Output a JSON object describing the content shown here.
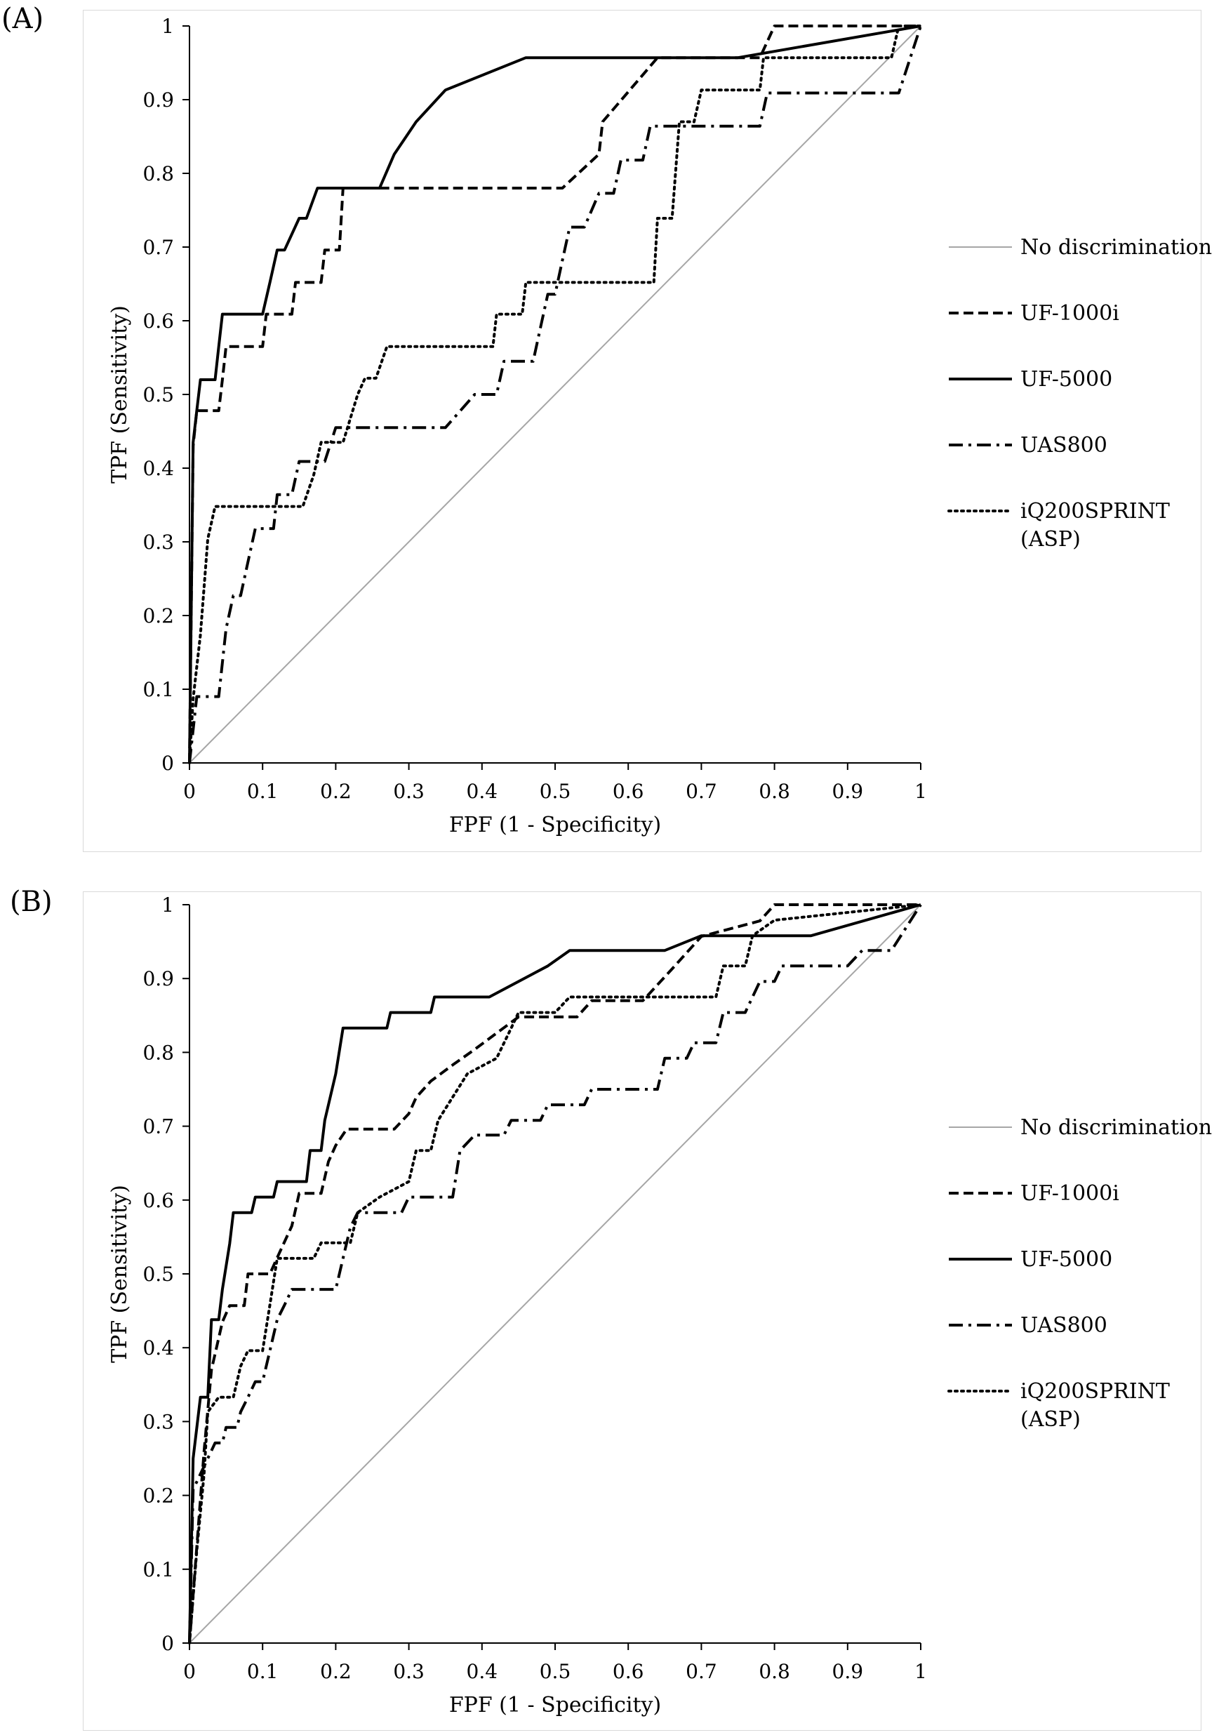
{
  "chart_data": [
    {
      "panel_label": "(A)",
      "type": "line",
      "xlabel": "FPF (1 - Specificity)",
      "ylabel": "TPF (Sensitivity)",
      "xlim": [
        0,
        1
      ],
      "ylim": [
        0,
        1
      ],
      "x_ticks": [
        "0",
        "0.1",
        "0.2",
        "0.3",
        "0.4",
        "0.5",
        "0.6",
        "0.7",
        "0.8",
        "0.9",
        "1"
      ],
      "y_ticks": [
        "0",
        "0.1",
        "0.2",
        "0.3",
        "0.4",
        "0.5",
        "0.6",
        "0.7",
        "0.8",
        "0.9",
        "1"
      ],
      "grid": false,
      "legend_position": "right",
      "series": [
        {
          "name": "No discrimination",
          "style": "solid-gray",
          "points": [
            [
              0,
              0
            ],
            [
              1,
              1
            ]
          ]
        },
        {
          "name": "UF-1000i",
          "style": "dashed",
          "points": [
            [
              0,
              0
            ],
            [
              0.005,
              0.43
            ],
            [
              0.01,
              0.478
            ],
            [
              0.04,
              0.478
            ],
            [
              0.045,
              0.52
            ],
            [
              0.05,
              0.565
            ],
            [
              0.1,
              0.565
            ],
            [
              0.105,
              0.609
            ],
            [
              0.14,
              0.609
            ],
            [
              0.145,
              0.652
            ],
            [
              0.18,
              0.652
            ],
            [
              0.185,
              0.696
            ],
            [
              0.205,
              0.696
            ],
            [
              0.21,
              0.78
            ],
            [
              0.51,
              0.78
            ],
            [
              0.56,
              0.826
            ],
            [
              0.565,
              0.87
            ],
            [
              0.64,
              0.957
            ],
            [
              0.78,
              0.957
            ],
            [
              0.8,
              1
            ],
            [
              1,
              1
            ]
          ]
        },
        {
          "name": "UF-5000",
          "style": "solid",
          "points": [
            [
              0,
              0
            ],
            [
              0.005,
              0.435
            ],
            [
              0.01,
              0.478
            ],
            [
              0.015,
              0.52
            ],
            [
              0.035,
              0.52
            ],
            [
              0.04,
              0.565
            ],
            [
              0.045,
              0.609
            ],
            [
              0.1,
              0.609
            ],
            [
              0.11,
              0.652
            ],
            [
              0.12,
              0.696
            ],
            [
              0.13,
              0.696
            ],
            [
              0.15,
              0.739
            ],
            [
              0.16,
              0.739
            ],
            [
              0.175,
              0.78
            ],
            [
              0.26,
              0.78
            ],
            [
              0.28,
              0.826
            ],
            [
              0.31,
              0.87
            ],
            [
              0.35,
              0.913
            ],
            [
              0.46,
              0.957
            ],
            [
              0.75,
              0.957
            ],
            [
              1,
              1
            ]
          ]
        },
        {
          "name": "UAS800",
          "style": "dashdot",
          "points": [
            [
              0,
              0
            ],
            [
              0.005,
              0.045
            ],
            [
              0.01,
              0.09
            ],
            [
              0.04,
              0.09
            ],
            [
              0.045,
              0.136
            ],
            [
              0.05,
              0.182
            ],
            [
              0.06,
              0.227
            ],
            [
              0.07,
              0.227
            ],
            [
              0.08,
              0.273
            ],
            [
              0.09,
              0.318
            ],
            [
              0.115,
              0.318
            ],
            [
              0.12,
              0.364
            ],
            [
              0.14,
              0.364
            ],
            [
              0.15,
              0.409
            ],
            [
              0.185,
              0.409
            ],
            [
              0.2,
              0.455
            ],
            [
              0.35,
              0.455
            ],
            [
              0.39,
              0.5
            ],
            [
              0.39,
              0.5
            ],
            [
              0.42,
              0.5
            ],
            [
              0.43,
              0.545
            ],
            [
              0.47,
              0.545
            ],
            [
              0.48,
              0.591
            ],
            [
              0.49,
              0.636
            ],
            [
              0.5,
              0.636
            ],
            [
              0.51,
              0.682
            ],
            [
              0.52,
              0.727
            ],
            [
              0.54,
              0.727
            ],
            [
              0.56,
              0.773
            ],
            [
              0.58,
              0.773
            ],
            [
              0.59,
              0.818
            ],
            [
              0.62,
              0.818
            ],
            [
              0.63,
              0.864
            ],
            [
              0.78,
              0.864
            ],
            [
              0.79,
              0.909
            ],
            [
              0.97,
              0.909
            ],
            [
              1,
              1
            ]
          ]
        },
        {
          "name": "iQ200SPRINT (ASP)",
          "style": "dotted",
          "points": [
            [
              0,
              0
            ],
            [
              0.005,
              0.087
            ],
            [
              0.015,
              0.174
            ],
            [
              0.025,
              0.304
            ],
            [
              0.035,
              0.348
            ],
            [
              0.155,
              0.348
            ],
            [
              0.17,
              0.391
            ],
            [
              0.18,
              0.435
            ],
            [
              0.21,
              0.435
            ],
            [
              0.23,
              0.5
            ],
            [
              0.24,
              0.522
            ],
            [
              0.255,
              0.522
            ],
            [
              0.27,
              0.565
            ],
            [
              0.415,
              0.565
            ],
            [
              0.42,
              0.609
            ],
            [
              0.455,
              0.609
            ],
            [
              0.46,
              0.652
            ],
            [
              0.635,
              0.652
            ],
            [
              0.64,
              0.739
            ],
            [
              0.66,
              0.739
            ],
            [
              0.67,
              0.87
            ],
            [
              0.69,
              0.87
            ],
            [
              0.7,
              0.913
            ],
            [
              0.78,
              0.913
            ],
            [
              0.785,
              0.957
            ],
            [
              0.96,
              0.957
            ],
            [
              0.97,
              1
            ],
            [
              1,
              1
            ]
          ]
        }
      ]
    },
    {
      "panel_label": "(B)",
      "type": "line",
      "xlabel": "FPF (1 - Specificity)",
      "ylabel": "TPF (Sensitivity)",
      "xlim": [
        0,
        1
      ],
      "ylim": [
        0,
        1
      ],
      "x_ticks": [
        "0",
        "0.1",
        "0.2",
        "0.3",
        "0.4",
        "0.5",
        "0.6",
        "0.7",
        "0.8",
        "0.9",
        "1"
      ],
      "y_ticks": [
        "0",
        "0.1",
        "0.2",
        "0.3",
        "0.4",
        "0.5",
        "0.6",
        "0.7",
        "0.8",
        "0.9",
        "1"
      ],
      "grid": false,
      "legend_position": "right",
      "series": [
        {
          "name": "No discrimination",
          "style": "solid-gray",
          "points": [
            [
              0,
              0
            ],
            [
              1,
              1
            ]
          ]
        },
        {
          "name": "UF-1000i",
          "style": "dashed",
          "points": [
            [
              0,
              0
            ],
            [
              0.01,
              0.13
            ],
            [
              0.02,
              0.26
            ],
            [
              0.03,
              0.37
            ],
            [
              0.045,
              0.435
            ],
            [
              0.055,
              0.457
            ],
            [
              0.075,
              0.457
            ],
            [
              0.08,
              0.5
            ],
            [
              0.11,
              0.5
            ],
            [
              0.12,
              0.522
            ],
            [
              0.14,
              0.565
            ],
            [
              0.15,
              0.609
            ],
            [
              0.18,
              0.609
            ],
            [
              0.19,
              0.652
            ],
            [
              0.2,
              0.674
            ],
            [
              0.215,
              0.696
            ],
            [
              0.28,
              0.696
            ],
            [
              0.3,
              0.717
            ],
            [
              0.31,
              0.739
            ],
            [
              0.33,
              0.761
            ],
            [
              0.36,
              0.783
            ],
            [
              0.39,
              0.804
            ],
            [
              0.42,
              0.826
            ],
            [
              0.45,
              0.848
            ],
            [
              0.53,
              0.848
            ],
            [
              0.55,
              0.87
            ],
            [
              0.62,
              0.87
            ],
            [
              0.66,
              0.913
            ],
            [
              0.7,
              0.957
            ],
            [
              0.78,
              0.978
            ],
            [
              0.8,
              1
            ],
            [
              1,
              1
            ]
          ]
        },
        {
          "name": "UF-5000",
          "style": "solid",
          "points": [
            [
              0,
              0
            ],
            [
              0.005,
              0.25
            ],
            [
              0.015,
              0.333
            ],
            [
              0.025,
              0.333
            ],
            [
              0.03,
              0.438
            ],
            [
              0.04,
              0.438
            ],
            [
              0.045,
              0.479
            ],
            [
              0.055,
              0.541
            ],
            [
              0.06,
              0.583
            ],
            [
              0.085,
              0.583
            ],
            [
              0.09,
              0.604
            ],
            [
              0.115,
              0.604
            ],
            [
              0.12,
              0.625
            ],
            [
              0.16,
              0.625
            ],
            [
              0.165,
              0.667
            ],
            [
              0.18,
              0.667
            ],
            [
              0.185,
              0.708
            ],
            [
              0.2,
              0.771
            ],
            [
              0.21,
              0.833
            ],
            [
              0.27,
              0.833
            ],
            [
              0.275,
              0.854
            ],
            [
              0.33,
              0.854
            ],
            [
              0.335,
              0.875
            ],
            [
              0.41,
              0.875
            ],
            [
              0.49,
              0.917
            ],
            [
              0.52,
              0.938
            ],
            [
              0.65,
              0.938
            ],
            [
              0.7,
              0.958
            ],
            [
              0.85,
              0.958
            ],
            [
              1,
              1
            ]
          ]
        },
        {
          "name": "UAS800",
          "style": "dashdot",
          "points": [
            [
              0,
              0
            ],
            [
              0.005,
              0.208
            ],
            [
              0.015,
              0.229
            ],
            [
              0.025,
              0.25
            ],
            [
              0.035,
              0.271
            ],
            [
              0.045,
              0.271
            ],
            [
              0.05,
              0.292
            ],
            [
              0.065,
              0.292
            ],
            [
              0.07,
              0.313
            ],
            [
              0.08,
              0.333
            ],
            [
              0.09,
              0.354
            ],
            [
              0.1,
              0.354
            ],
            [
              0.11,
              0.396
            ],
            [
              0.12,
              0.438
            ],
            [
              0.13,
              0.458
            ],
            [
              0.14,
              0.479
            ],
            [
              0.2,
              0.479
            ],
            [
              0.21,
              0.521
            ],
            [
              0.22,
              0.563
            ],
            [
              0.23,
              0.583
            ],
            [
              0.29,
              0.583
            ],
            [
              0.3,
              0.604
            ],
            [
              0.36,
              0.604
            ],
            [
              0.37,
              0.667
            ],
            [
              0.39,
              0.688
            ],
            [
              0.43,
              0.688
            ],
            [
              0.44,
              0.708
            ],
            [
              0.48,
              0.708
            ],
            [
              0.49,
              0.729
            ],
            [
              0.54,
              0.729
            ],
            [
              0.55,
              0.75
            ],
            [
              0.64,
              0.75
            ],
            [
              0.65,
              0.792
            ],
            [
              0.68,
              0.792
            ],
            [
              0.69,
              0.813
            ],
            [
              0.72,
              0.813
            ],
            [
              0.73,
              0.854
            ],
            [
              0.76,
              0.854
            ],
            [
              0.78,
              0.896
            ],
            [
              0.8,
              0.896
            ],
            [
              0.81,
              0.917
            ],
            [
              0.9,
              0.917
            ],
            [
              0.92,
              0.938
            ],
            [
              0.96,
              0.938
            ],
            [
              1,
              1
            ]
          ]
        },
        {
          "name": "iQ200SPRINT (ASP)",
          "style": "dotted",
          "points": [
            [
              0,
              0
            ],
            [
              0.01,
              0.125
            ],
            [
              0.02,
              0.229
            ],
            [
              0.025,
              0.313
            ],
            [
              0.04,
              0.333
            ],
            [
              0.06,
              0.333
            ],
            [
              0.07,
              0.375
            ],
            [
              0.08,
              0.396
            ],
            [
              0.1,
              0.396
            ],
            [
              0.11,
              0.458
            ],
            [
              0.12,
              0.521
            ],
            [
              0.17,
              0.521
            ],
            [
              0.18,
              0.542
            ],
            [
              0.22,
              0.542
            ],
            [
              0.23,
              0.583
            ],
            [
              0.26,
              0.604
            ],
            [
              0.3,
              0.625
            ],
            [
              0.31,
              0.667
            ],
            [
              0.33,
              0.667
            ],
            [
              0.34,
              0.708
            ],
            [
              0.38,
              0.771
            ],
            [
              0.42,
              0.792
            ],
            [
              0.44,
              0.833
            ],
            [
              0.45,
              0.854
            ],
            [
              0.5,
              0.854
            ],
            [
              0.52,
              0.875
            ],
            [
              0.72,
              0.875
            ],
            [
              0.73,
              0.917
            ],
            [
              0.76,
              0.917
            ],
            [
              0.77,
              0.958
            ],
            [
              0.8,
              0.979
            ],
            [
              1,
              1
            ]
          ]
        }
      ]
    }
  ]
}
